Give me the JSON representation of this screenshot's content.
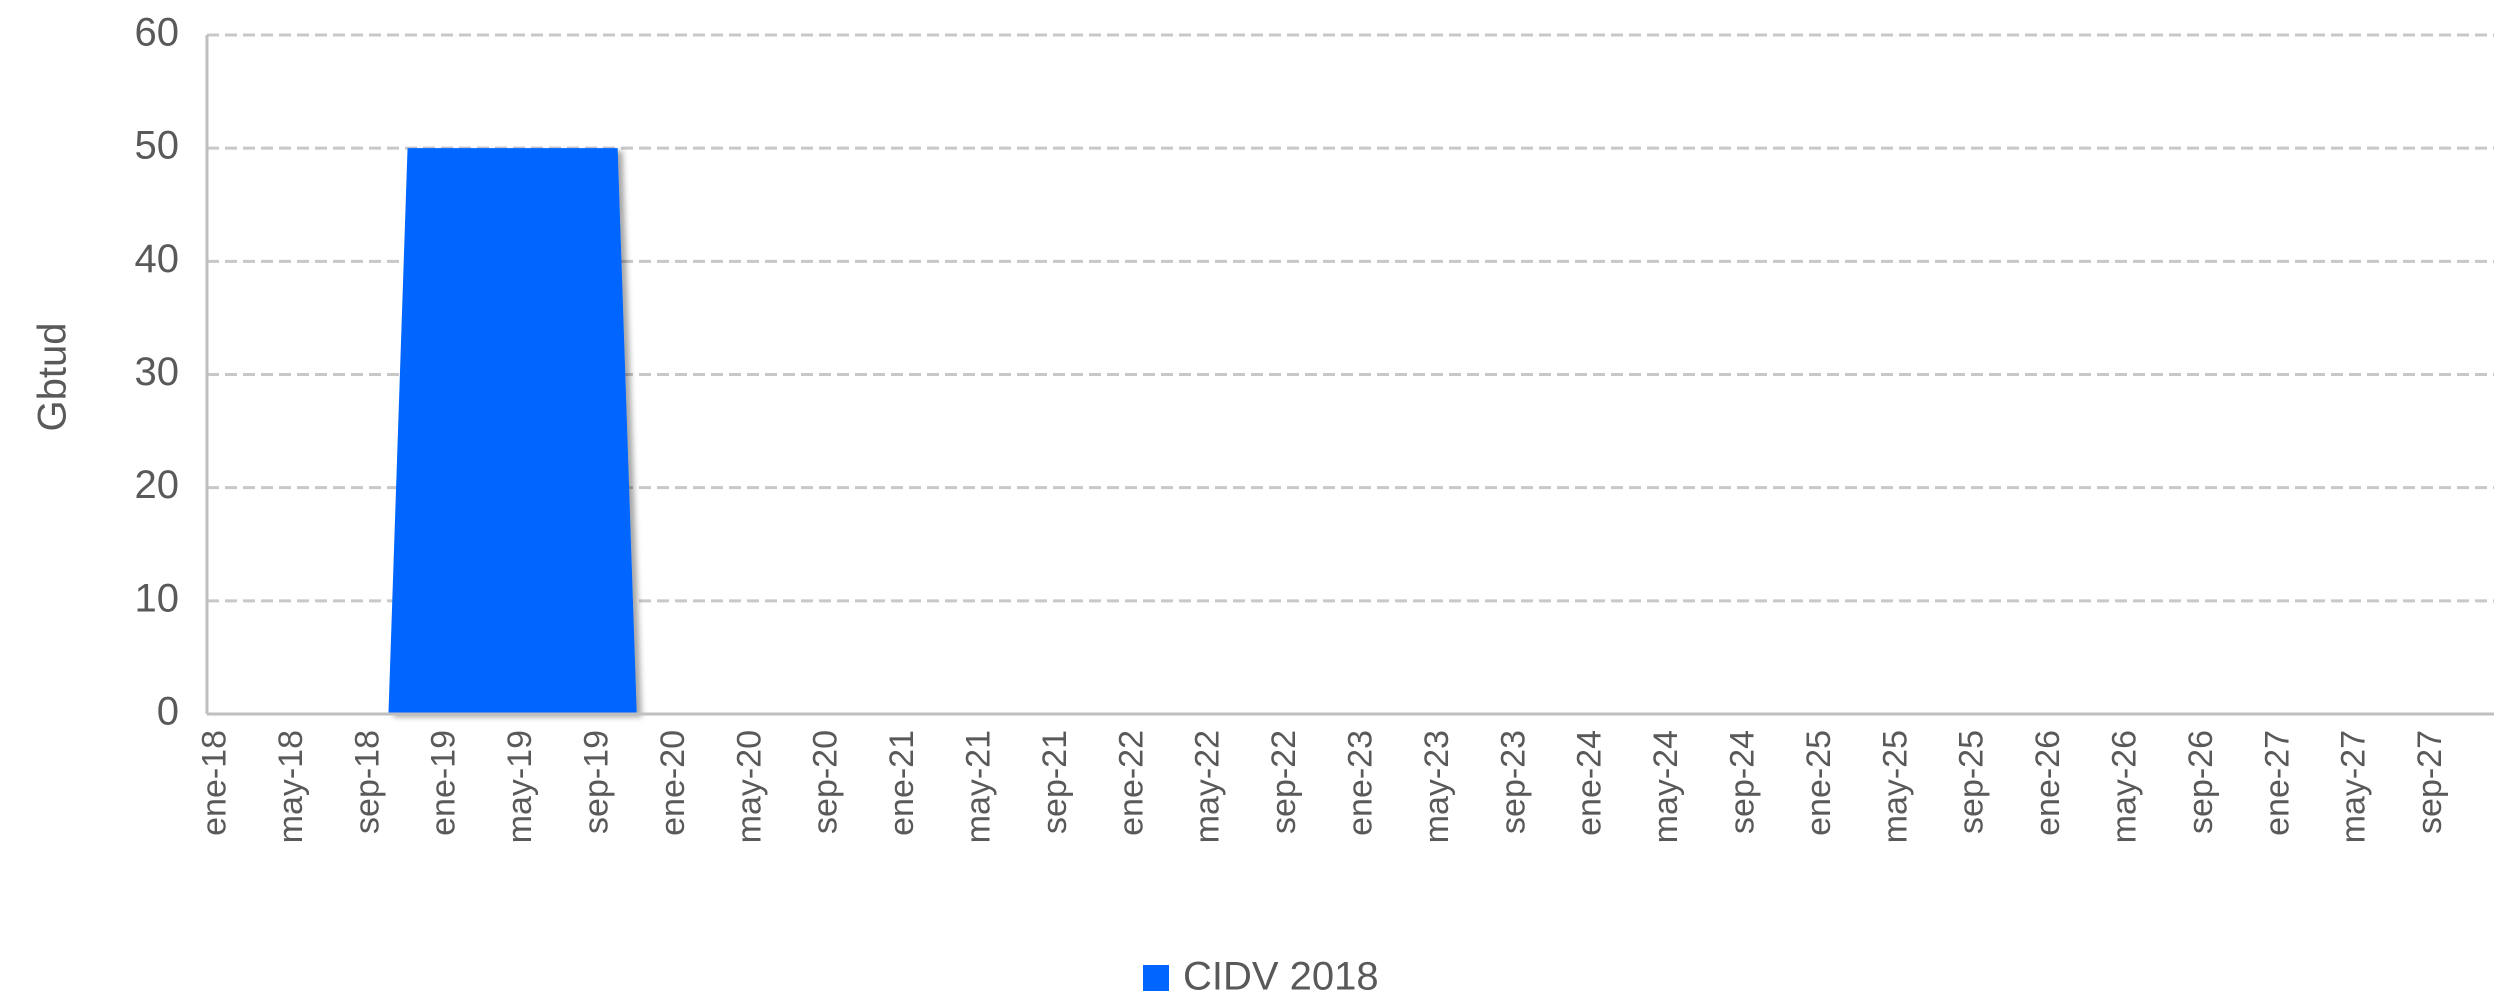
{
  "chart_data": {
    "type": "area",
    "y_label": "Gbtud",
    "categories": [
      "ene-18",
      null,
      null,
      null,
      "may-18",
      null,
      null,
      null,
      "sep-18",
      null,
      null,
      null,
      "ene-19",
      null,
      null,
      null,
      "may-19",
      null,
      null,
      null,
      "sep-19",
      null,
      null,
      null,
      "ene-20",
      null,
      null,
      null,
      "may-20",
      null,
      null,
      null,
      "sep-20",
      null,
      null,
      null,
      "ene-21",
      null,
      null,
      null,
      "may-21",
      null,
      null,
      null,
      "sep-21",
      null,
      null,
      null,
      "ene-22",
      null,
      null,
      null,
      "may-22",
      null,
      null,
      null,
      "sep-22",
      null,
      null,
      null,
      "ene-23",
      null,
      null,
      null,
      "may-23",
      null,
      null,
      null,
      "sep-23",
      null,
      null,
      null,
      "ene-24",
      null,
      null,
      null,
      "may-24",
      null,
      null,
      null,
      "sep-24",
      null,
      null,
      null,
      "ene-25",
      null,
      null,
      null,
      "may-25",
      null,
      null,
      null,
      "sep-25",
      null,
      null,
      null,
      "ene-26",
      null,
      null,
      null,
      "may-26",
      null,
      null,
      null,
      "sep-26",
      null,
      null,
      null,
      "ene-27",
      null,
      null,
      null,
      "may-27",
      null,
      null,
      null,
      "sep-27",
      null,
      null,
      null
    ],
    "series": [
      {
        "name": "CIDV 2018",
        "color": "#0066ff",
        "values": [
          0,
          0,
          0,
          0,
          0,
          0,
          0,
          0,
          0,
          0,
          50,
          50,
          50,
          50,
          50,
          50,
          50,
          50,
          50,
          50,
          50,
          50,
          0,
          0,
          0,
          0,
          0,
          0,
          0,
          0,
          0,
          0,
          0,
          0,
          0,
          0,
          0,
          0,
          0,
          0,
          0,
          0,
          0,
          0,
          0,
          0,
          0,
          0,
          0,
          0,
          0,
          0,
          0,
          0,
          0,
          0,
          0,
          0,
          0,
          0,
          0,
          0,
          0,
          0,
          0,
          0,
          0,
          0,
          0,
          0,
          0,
          0,
          0,
          0,
          0,
          0,
          0,
          0,
          0,
          0,
          0,
          0,
          0,
          0,
          0,
          0,
          0,
          0,
          0,
          0,
          0,
          0,
          0,
          0,
          0,
          0,
          0,
          0,
          0,
          0,
          0,
          0,
          0,
          0,
          0,
          0,
          0,
          0,
          0,
          0,
          0,
          0,
          0,
          0,
          0,
          0,
          0,
          0,
          0,
          0
        ]
      }
    ],
    "ylim": [
      0,
      60
    ],
    "yticks": [
      0,
      10,
      20,
      30,
      40,
      50,
      60
    ],
    "grid": true,
    "legend": "bottom"
  }
}
